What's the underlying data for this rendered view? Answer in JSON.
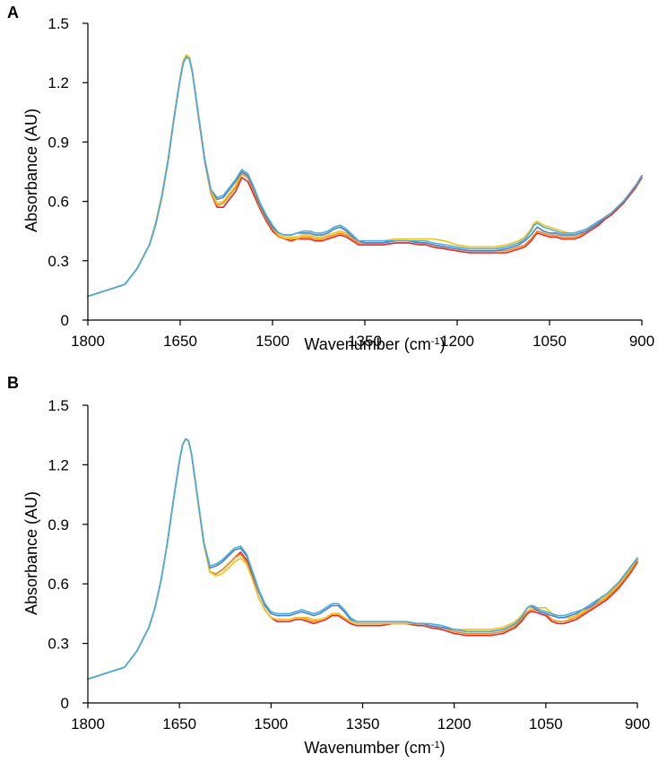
{
  "chart_data": [
    {
      "panel": "A",
      "type": "line",
      "xlabel": "Wavenumber (cm",
      "xlabel_sup": "-1",
      "xlabel_end": ")",
      "ylabel": "Absorbance (AU)",
      "xlim": [
        1800,
        900
      ],
      "ylim": [
        0,
        1.5
      ],
      "x_reversed": true,
      "xticks": [
        1800,
        1650,
        1500,
        1350,
        1200,
        1050,
        900
      ],
      "yticks": [
        0,
        0.3,
        0.6,
        0.9,
        1.2,
        1.5
      ],
      "ytick_labels": [
        "0",
        "0.3",
        "0.6",
        "0.9",
        "1.2",
        "1.5"
      ],
      "grid": false,
      "x": [
        1800,
        1780,
        1760,
        1740,
        1720,
        1700,
        1690,
        1680,
        1670,
        1660,
        1650,
        1645,
        1640,
        1635,
        1630,
        1620,
        1610,
        1600,
        1590,
        1580,
        1570,
        1560,
        1550,
        1540,
        1530,
        1520,
        1510,
        1500,
        1490,
        1480,
        1470,
        1460,
        1450,
        1440,
        1430,
        1420,
        1410,
        1400,
        1390,
        1380,
        1370,
        1360,
        1350,
        1340,
        1320,
        1300,
        1280,
        1260,
        1250,
        1240,
        1220,
        1200,
        1180,
        1160,
        1140,
        1120,
        1100,
        1090,
        1080,
        1075,
        1070,
        1060,
        1050,
        1040,
        1030,
        1020,
        1010,
        1000,
        990,
        980,
        970,
        960,
        950,
        940,
        930,
        920,
        910,
        900
      ],
      "series": [
        {
          "color": "#e8251f",
          "values": [
            0.12,
            0.14,
            0.16,
            0.18,
            0.26,
            0.38,
            0.48,
            0.62,
            0.8,
            1.02,
            1.22,
            1.3,
            1.33,
            1.32,
            1.25,
            1.02,
            0.8,
            0.64,
            0.57,
            0.57,
            0.61,
            0.65,
            0.72,
            0.7,
            0.63,
            0.56,
            0.5,
            0.45,
            0.42,
            0.41,
            0.4,
            0.41,
            0.41,
            0.41,
            0.4,
            0.4,
            0.41,
            0.42,
            0.43,
            0.42,
            0.4,
            0.38,
            0.38,
            0.38,
            0.38,
            0.39,
            0.39,
            0.38,
            0.38,
            0.37,
            0.36,
            0.35,
            0.34,
            0.34,
            0.34,
            0.34,
            0.36,
            0.37,
            0.4,
            0.42,
            0.44,
            0.43,
            0.42,
            0.42,
            0.41,
            0.41,
            0.41,
            0.42,
            0.44,
            0.46,
            0.48,
            0.51,
            0.53,
            0.56,
            0.59,
            0.63,
            0.67,
            0.72
          ]
        },
        {
          "color": "#f08a1c",
          "values": [
            0.12,
            0.14,
            0.16,
            0.18,
            0.26,
            0.38,
            0.48,
            0.62,
            0.8,
            1.02,
            1.22,
            1.3,
            1.33,
            1.32,
            1.25,
            1.02,
            0.8,
            0.64,
            0.58,
            0.59,
            0.63,
            0.67,
            0.74,
            0.72,
            0.65,
            0.57,
            0.51,
            0.46,
            0.42,
            0.41,
            0.41,
            0.41,
            0.42,
            0.42,
            0.41,
            0.41,
            0.42,
            0.43,
            0.44,
            0.43,
            0.41,
            0.39,
            0.39,
            0.39,
            0.39,
            0.4,
            0.4,
            0.39,
            0.39,
            0.38,
            0.37,
            0.36,
            0.35,
            0.35,
            0.35,
            0.35,
            0.37,
            0.38,
            0.41,
            0.43,
            0.45,
            0.44,
            0.43,
            0.43,
            0.42,
            0.42,
            0.42,
            0.43,
            0.45,
            0.47,
            0.49,
            0.52,
            0.54,
            0.57,
            0.6,
            0.64,
            0.68,
            0.73
          ]
        },
        {
          "color": "#f2c20e",
          "values": [
            0.12,
            0.14,
            0.16,
            0.18,
            0.26,
            0.38,
            0.49,
            0.63,
            0.81,
            1.03,
            1.23,
            1.31,
            1.34,
            1.33,
            1.26,
            1.03,
            0.81,
            0.65,
            0.59,
            0.6,
            0.64,
            0.68,
            0.75,
            0.73,
            0.66,
            0.58,
            0.52,
            0.47,
            0.43,
            0.42,
            0.42,
            0.42,
            0.43,
            0.43,
            0.42,
            0.42,
            0.43,
            0.44,
            0.45,
            0.44,
            0.42,
            0.4,
            0.4,
            0.4,
            0.4,
            0.41,
            0.41,
            0.41,
            0.41,
            0.41,
            0.4,
            0.38,
            0.37,
            0.37,
            0.37,
            0.38,
            0.4,
            0.42,
            0.46,
            0.49,
            0.5,
            0.48,
            0.47,
            0.46,
            0.45,
            0.44,
            0.44,
            0.45,
            0.46,
            0.48,
            0.5,
            0.52,
            0.54,
            0.57,
            0.6,
            0.64,
            0.68,
            0.73
          ]
        },
        {
          "color": "#4f7fc4",
          "values": [
            0.12,
            0.14,
            0.16,
            0.18,
            0.26,
            0.38,
            0.48,
            0.62,
            0.8,
            1.02,
            1.22,
            1.3,
            1.33,
            1.32,
            1.25,
            1.03,
            0.81,
            0.66,
            0.61,
            0.62,
            0.66,
            0.7,
            0.75,
            0.73,
            0.66,
            0.58,
            0.52,
            0.47,
            0.44,
            0.43,
            0.43,
            0.44,
            0.44,
            0.44,
            0.43,
            0.43,
            0.44,
            0.46,
            0.47,
            0.45,
            0.42,
            0.4,
            0.39,
            0.39,
            0.39,
            0.4,
            0.4,
            0.39,
            0.39,
            0.38,
            0.37,
            0.36,
            0.35,
            0.35,
            0.35,
            0.36,
            0.38,
            0.4,
            0.43,
            0.45,
            0.47,
            0.45,
            0.44,
            0.44,
            0.43,
            0.43,
            0.43,
            0.44,
            0.45,
            0.47,
            0.49,
            0.52,
            0.54,
            0.57,
            0.6,
            0.64,
            0.68,
            0.73
          ]
        },
        {
          "color": "#48aee0",
          "values": [
            0.12,
            0.14,
            0.16,
            0.18,
            0.26,
            0.38,
            0.48,
            0.62,
            0.8,
            1.02,
            1.22,
            1.3,
            1.33,
            1.32,
            1.25,
            1.03,
            0.81,
            0.66,
            0.62,
            0.63,
            0.67,
            0.71,
            0.76,
            0.74,
            0.67,
            0.59,
            0.53,
            0.48,
            0.44,
            0.43,
            0.43,
            0.44,
            0.45,
            0.45,
            0.44,
            0.44,
            0.45,
            0.47,
            0.48,
            0.46,
            0.43,
            0.4,
            0.4,
            0.4,
            0.4,
            0.4,
            0.4,
            0.4,
            0.4,
            0.39,
            0.38,
            0.37,
            0.36,
            0.36,
            0.36,
            0.37,
            0.39,
            0.41,
            0.45,
            0.48,
            0.49,
            0.47,
            0.46,
            0.45,
            0.44,
            0.44,
            0.44,
            0.45,
            0.46,
            0.48,
            0.5,
            0.52,
            0.54,
            0.57,
            0.6,
            0.64,
            0.68,
            0.73
          ]
        }
      ]
    },
    {
      "panel": "B",
      "type": "line",
      "xlabel": "Wavenumber (cm",
      "xlabel_sup": "-1",
      "xlabel_end": ")",
      "ylabel": "Absorbance (AU)",
      "xlim": [
        1800,
        900
      ],
      "ylim": [
        0,
        1.5
      ],
      "x_reversed": true,
      "xticks": [
        1800,
        1650,
        1500,
        1350,
        1200,
        1050,
        900
      ],
      "yticks": [
        0,
        0.3,
        0.6,
        0.9,
        1.2,
        1.5
      ],
      "ytick_labels": [
        "0",
        "0.3",
        "0.6",
        "0.9",
        "1.2",
        "1.5"
      ],
      "grid": false,
      "x": [
        1800,
        1780,
        1760,
        1740,
        1720,
        1700,
        1690,
        1680,
        1670,
        1660,
        1650,
        1645,
        1640,
        1635,
        1630,
        1620,
        1610,
        1600,
        1590,
        1580,
        1570,
        1560,
        1550,
        1540,
        1530,
        1520,
        1510,
        1500,
        1490,
        1480,
        1470,
        1460,
        1450,
        1440,
        1430,
        1420,
        1410,
        1400,
        1390,
        1380,
        1370,
        1360,
        1350,
        1340,
        1320,
        1300,
        1280,
        1260,
        1250,
        1240,
        1220,
        1200,
        1180,
        1160,
        1140,
        1120,
        1100,
        1090,
        1080,
        1075,
        1070,
        1060,
        1050,
        1040,
        1030,
        1020,
        1010,
        1000,
        990,
        980,
        970,
        960,
        950,
        940,
        930,
        920,
        910,
        900
      ],
      "series": [
        {
          "color": "#e8251f",
          "values": [
            0.12,
            0.14,
            0.16,
            0.18,
            0.26,
            0.38,
            0.48,
            0.62,
            0.8,
            1.02,
            1.22,
            1.3,
            1.33,
            1.32,
            1.25,
            1.02,
            0.8,
            0.66,
            0.65,
            0.67,
            0.7,
            0.73,
            0.76,
            0.72,
            0.63,
            0.53,
            0.47,
            0.43,
            0.41,
            0.41,
            0.41,
            0.42,
            0.42,
            0.41,
            0.4,
            0.41,
            0.42,
            0.44,
            0.44,
            0.42,
            0.4,
            0.39,
            0.39,
            0.39,
            0.39,
            0.4,
            0.4,
            0.39,
            0.39,
            0.38,
            0.37,
            0.35,
            0.34,
            0.34,
            0.34,
            0.35,
            0.38,
            0.41,
            0.45,
            0.46,
            0.46,
            0.45,
            0.44,
            0.41,
            0.4,
            0.4,
            0.41,
            0.42,
            0.44,
            0.46,
            0.48,
            0.5,
            0.52,
            0.55,
            0.58,
            0.62,
            0.66,
            0.71
          ]
        },
        {
          "color": "#f08a1c",
          "values": [
            0.12,
            0.14,
            0.16,
            0.18,
            0.26,
            0.38,
            0.48,
            0.62,
            0.8,
            1.02,
            1.22,
            1.3,
            1.33,
            1.32,
            1.25,
            1.02,
            0.8,
            0.66,
            0.65,
            0.67,
            0.7,
            0.73,
            0.75,
            0.71,
            0.62,
            0.53,
            0.47,
            0.43,
            0.42,
            0.42,
            0.42,
            0.43,
            0.43,
            0.42,
            0.41,
            0.42,
            0.43,
            0.45,
            0.45,
            0.43,
            0.41,
            0.4,
            0.4,
            0.4,
            0.4,
            0.4,
            0.4,
            0.4,
            0.4,
            0.39,
            0.38,
            0.36,
            0.35,
            0.35,
            0.35,
            0.36,
            0.39,
            0.42,
            0.46,
            0.47,
            0.47,
            0.46,
            0.45,
            0.42,
            0.41,
            0.41,
            0.42,
            0.43,
            0.45,
            0.47,
            0.49,
            0.51,
            0.53,
            0.56,
            0.59,
            0.63,
            0.67,
            0.72
          ]
        },
        {
          "color": "#f2c20e",
          "values": [
            0.12,
            0.14,
            0.16,
            0.18,
            0.26,
            0.38,
            0.48,
            0.62,
            0.8,
            1.02,
            1.22,
            1.3,
            1.33,
            1.32,
            1.25,
            1.02,
            0.8,
            0.66,
            0.64,
            0.65,
            0.68,
            0.71,
            0.73,
            0.7,
            0.62,
            0.53,
            0.47,
            0.43,
            0.42,
            0.42,
            0.42,
            0.43,
            0.43,
            0.43,
            0.42,
            0.42,
            0.43,
            0.45,
            0.45,
            0.43,
            0.41,
            0.4,
            0.4,
            0.4,
            0.4,
            0.4,
            0.4,
            0.4,
            0.4,
            0.39,
            0.38,
            0.37,
            0.37,
            0.37,
            0.37,
            0.38,
            0.41,
            0.44,
            0.48,
            0.48,
            0.48,
            0.48,
            0.48,
            0.45,
            0.43,
            0.43,
            0.43,
            0.44,
            0.46,
            0.48,
            0.5,
            0.52,
            0.54,
            0.57,
            0.6,
            0.64,
            0.68,
            0.73
          ]
        },
        {
          "color": "#4f7fc4",
          "values": [
            0.12,
            0.14,
            0.16,
            0.18,
            0.26,
            0.38,
            0.48,
            0.62,
            0.8,
            1.02,
            1.22,
            1.3,
            1.33,
            1.32,
            1.25,
            1.03,
            0.81,
            0.68,
            0.69,
            0.71,
            0.74,
            0.77,
            0.78,
            0.74,
            0.65,
            0.56,
            0.49,
            0.45,
            0.44,
            0.44,
            0.44,
            0.45,
            0.46,
            0.45,
            0.44,
            0.45,
            0.47,
            0.49,
            0.49,
            0.46,
            0.42,
            0.41,
            0.41,
            0.41,
            0.41,
            0.41,
            0.41,
            0.4,
            0.4,
            0.39,
            0.38,
            0.37,
            0.36,
            0.36,
            0.36,
            0.37,
            0.4,
            0.43,
            0.48,
            0.49,
            0.48,
            0.46,
            0.45,
            0.44,
            0.43,
            0.43,
            0.44,
            0.45,
            0.47,
            0.48,
            0.5,
            0.53,
            0.55,
            0.58,
            0.61,
            0.65,
            0.69,
            0.73
          ]
        },
        {
          "color": "#48aee0",
          "values": [
            0.12,
            0.14,
            0.16,
            0.18,
            0.26,
            0.38,
            0.48,
            0.62,
            0.8,
            1.02,
            1.22,
            1.3,
            1.33,
            1.32,
            1.25,
            1.03,
            0.81,
            0.69,
            0.7,
            0.72,
            0.75,
            0.78,
            0.79,
            0.75,
            0.66,
            0.57,
            0.5,
            0.46,
            0.45,
            0.45,
            0.45,
            0.46,
            0.47,
            0.46,
            0.45,
            0.46,
            0.48,
            0.5,
            0.5,
            0.47,
            0.43,
            0.41,
            0.41,
            0.41,
            0.41,
            0.41,
            0.41,
            0.4,
            0.4,
            0.4,
            0.39,
            0.37,
            0.36,
            0.36,
            0.36,
            0.37,
            0.4,
            0.43,
            0.48,
            0.49,
            0.49,
            0.47,
            0.46,
            0.45,
            0.44,
            0.44,
            0.45,
            0.46,
            0.47,
            0.49,
            0.51,
            0.53,
            0.55,
            0.58,
            0.61,
            0.65,
            0.69,
            0.73
          ]
        }
      ]
    }
  ]
}
